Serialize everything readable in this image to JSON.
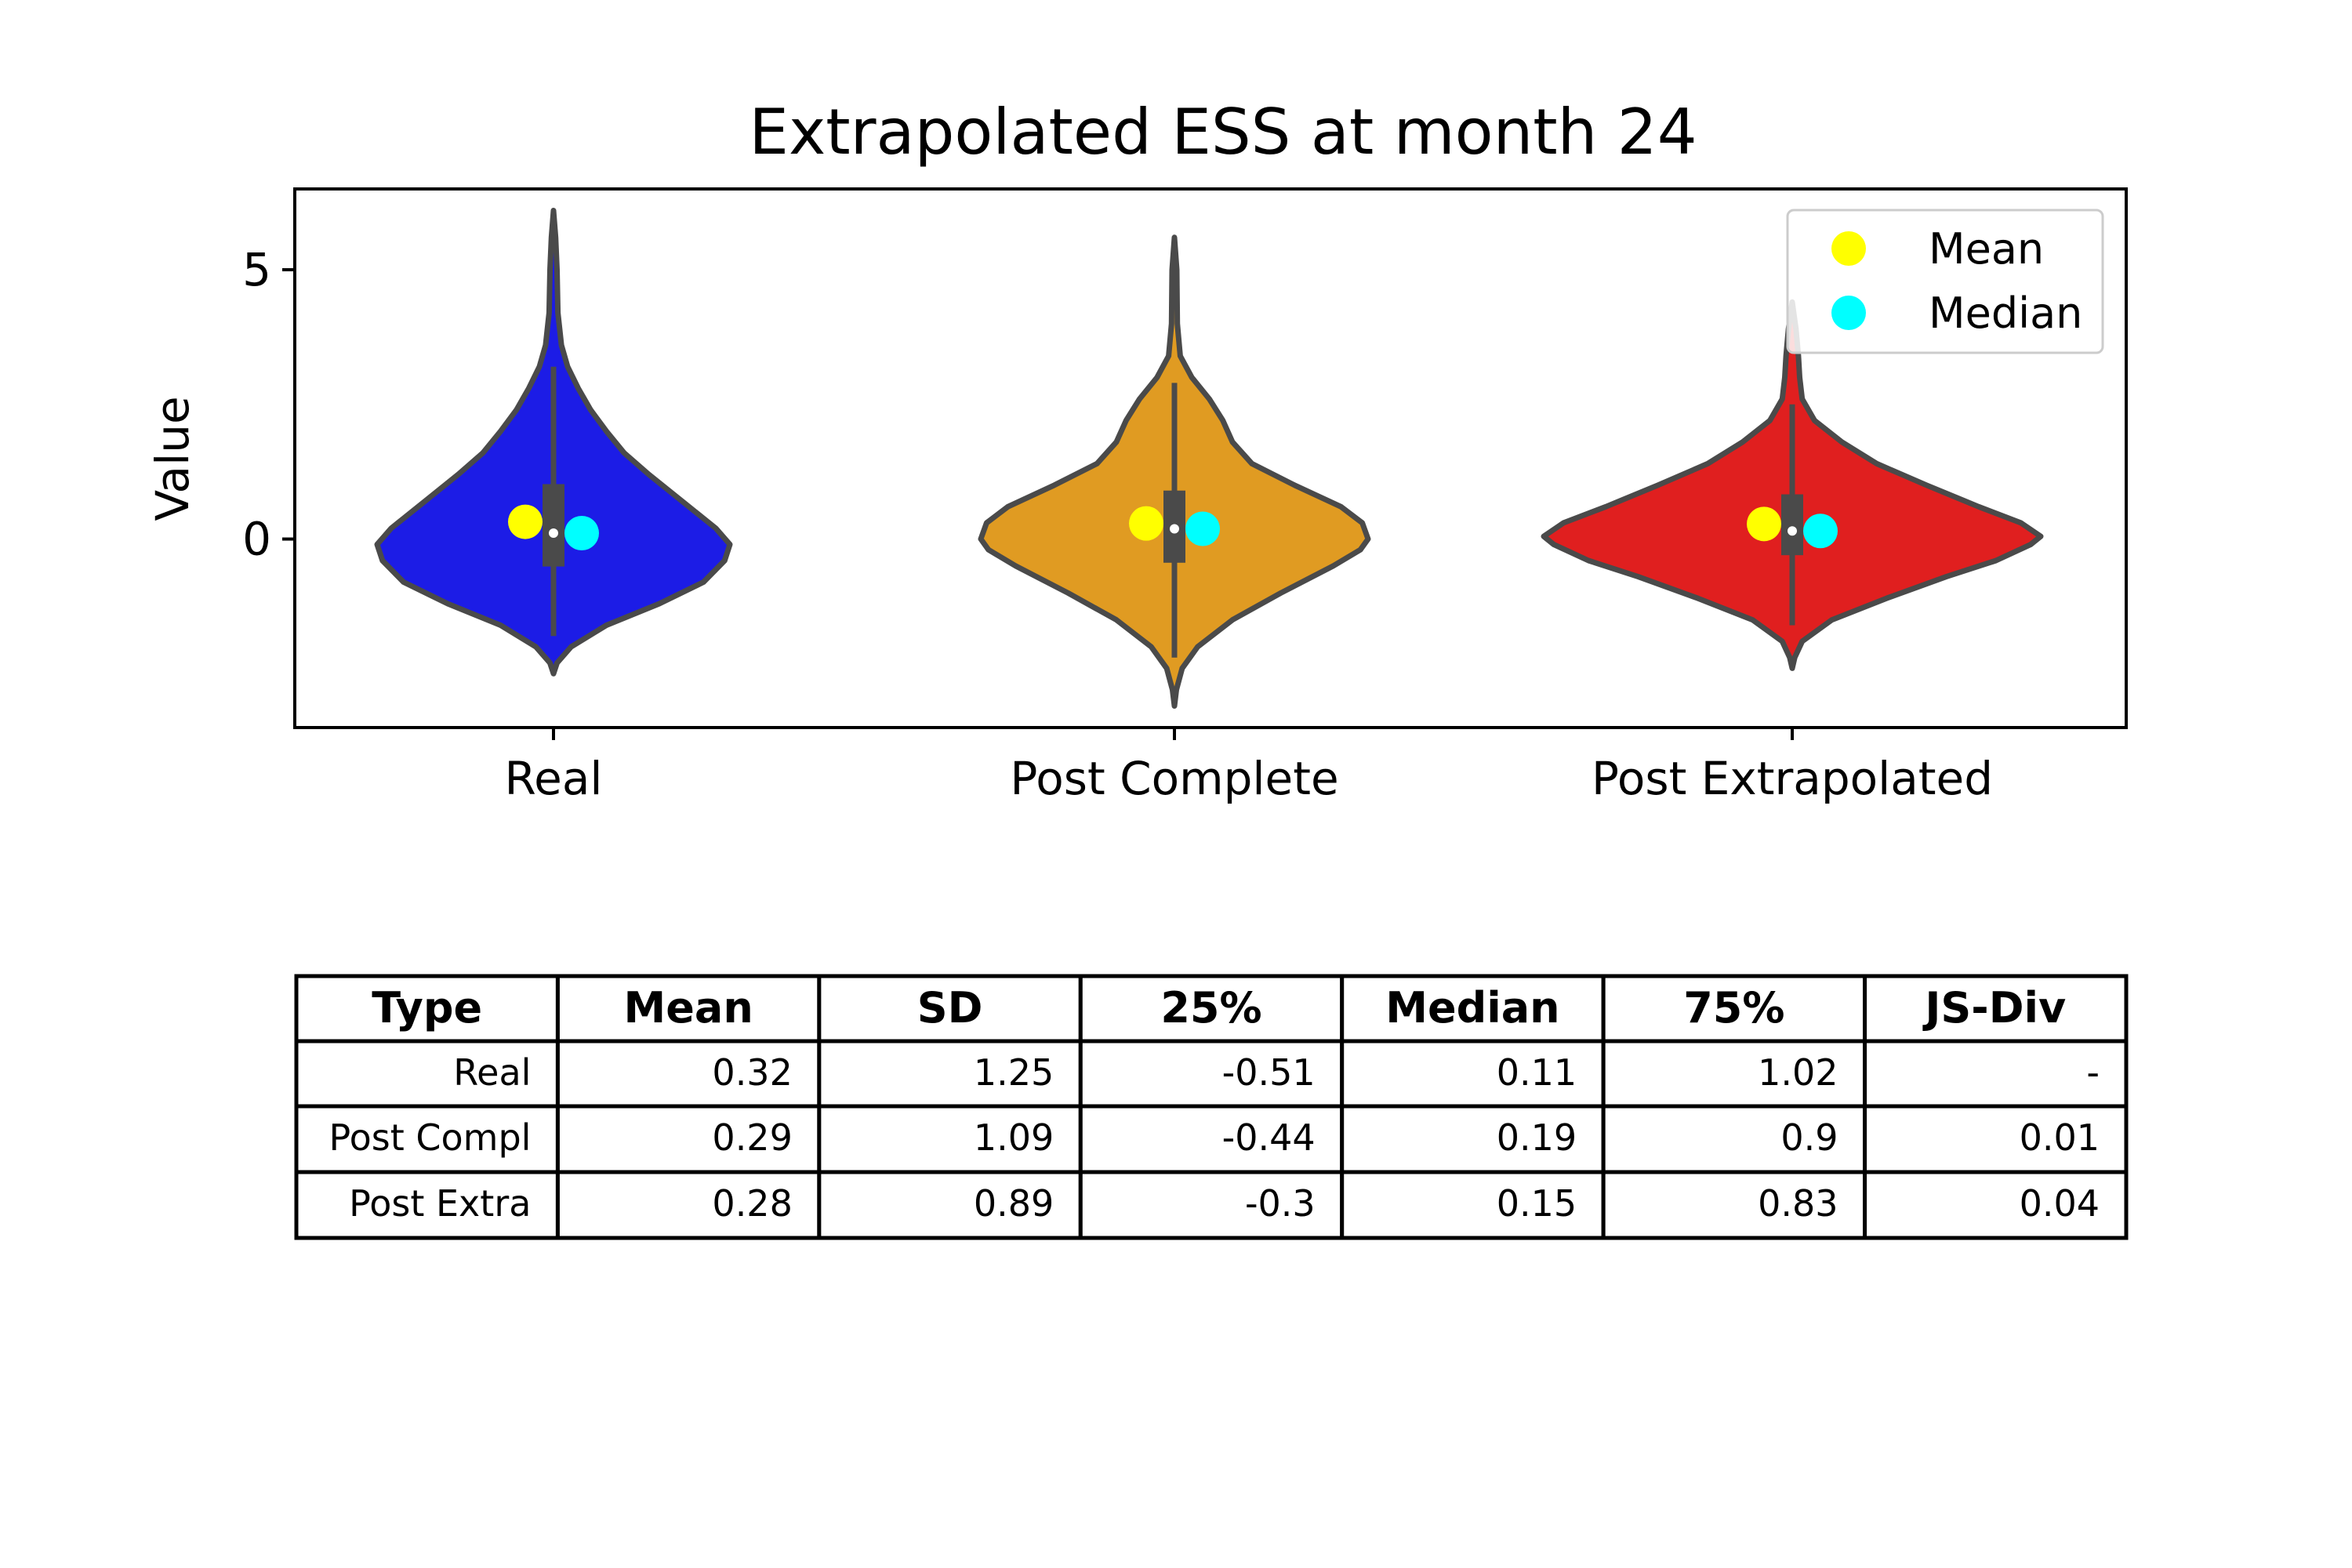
{
  "chart_data": {
    "type": "violin",
    "title": "Extrapolated ESS at month 24",
    "xlabel": "",
    "ylabel": "Value",
    "ylim": [
      -3.5,
      6.5
    ],
    "yticks": [
      0,
      5
    ],
    "yticklabels": [
      "0",
      "5"
    ],
    "categories": [
      "Real",
      "Post Complete",
      "Post Extrapolated"
    ],
    "colors": [
      "#1c1ce6",
      "#e09b22",
      "#e01f1f"
    ],
    "outline_color": "#4a4a4a",
    "series": [
      {
        "name": "Real",
        "mean": 0.32,
        "median": 0.11,
        "q1": -0.51,
        "q3": 1.02,
        "whisker": [
          -1.8,
          3.2
        ],
        "range": [
          -2.5,
          6.1
        ],
        "density": [
          [
            -2.5,
            0.0
          ],
          [
            -2.3,
            0.02
          ],
          [
            -2.0,
            0.1
          ],
          [
            -1.6,
            0.3
          ],
          [
            -1.2,
            0.6
          ],
          [
            -0.8,
            0.85
          ],
          [
            -0.4,
            0.97
          ],
          [
            -0.1,
            1.0
          ],
          [
            0.2,
            0.92
          ],
          [
            0.7,
            0.73
          ],
          [
            1.2,
            0.54
          ],
          [
            1.6,
            0.4
          ],
          [
            2.0,
            0.3
          ],
          [
            2.4,
            0.21
          ],
          [
            2.8,
            0.14
          ],
          [
            3.2,
            0.08
          ],
          [
            3.6,
            0.045
          ],
          [
            4.2,
            0.025
          ],
          [
            5.0,
            0.02
          ],
          [
            5.6,
            0.012
          ],
          [
            6.1,
            0.0
          ]
        ]
      },
      {
        "name": "Post Complete",
        "mean": 0.29,
        "median": 0.19,
        "q1": -0.44,
        "q3": 0.9,
        "whisker": [
          -2.2,
          2.9
        ],
        "range": [
          -3.1,
          5.6
        ],
        "density": [
          [
            -3.1,
            0.0
          ],
          [
            -2.8,
            0.01
          ],
          [
            -2.4,
            0.04
          ],
          [
            -2.0,
            0.12
          ],
          [
            -1.5,
            0.3
          ],
          [
            -1.0,
            0.55
          ],
          [
            -0.5,
            0.82
          ],
          [
            -0.2,
            0.96
          ],
          [
            0.0,
            1.0
          ],
          [
            0.3,
            0.97
          ],
          [
            0.6,
            0.86
          ],
          [
            1.0,
            0.62
          ],
          [
            1.4,
            0.4
          ],
          [
            1.8,
            0.3
          ],
          [
            2.2,
            0.25
          ],
          [
            2.6,
            0.18
          ],
          [
            3.0,
            0.09
          ],
          [
            3.4,
            0.03
          ],
          [
            4.0,
            0.015
          ],
          [
            5.0,
            0.012
          ],
          [
            5.6,
            0.0
          ]
        ]
      },
      {
        "name": "Post Extrapolated",
        "mean": 0.28,
        "median": 0.15,
        "q1": -0.3,
        "q3": 0.83,
        "whisker": [
          -1.6,
          2.5
        ],
        "range": [
          -2.4,
          4.4
        ],
        "density": [
          [
            -2.4,
            0.0
          ],
          [
            -2.2,
            0.01
          ],
          [
            -1.9,
            0.04
          ],
          [
            -1.5,
            0.16
          ],
          [
            -1.1,
            0.38
          ],
          [
            -0.7,
            0.62
          ],
          [
            -0.4,
            0.82
          ],
          [
            -0.1,
            0.96
          ],
          [
            0.05,
            1.0
          ],
          [
            0.3,
            0.92
          ],
          [
            0.6,
            0.75
          ],
          [
            1.0,
            0.54
          ],
          [
            1.4,
            0.34
          ],
          [
            1.8,
            0.2
          ],
          [
            2.2,
            0.09
          ],
          [
            2.6,
            0.04
          ],
          [
            3.0,
            0.03
          ],
          [
            3.4,
            0.025
          ],
          [
            3.9,
            0.015
          ],
          [
            4.4,
            0.0
          ]
        ]
      }
    ],
    "legend": {
      "position": "top-right",
      "entries": [
        {
          "label": "Mean",
          "color": "#ffff00"
        },
        {
          "label": "Median",
          "color": "#00ffff"
        }
      ]
    },
    "table": {
      "columns": [
        "Type",
        "Mean",
        "SD",
        "25%",
        "Median",
        "75%",
        "JS-Div"
      ],
      "rows": [
        [
          "Real",
          "0.32",
          "1.25",
          "-0.51",
          "0.11",
          "1.02",
          "-"
        ],
        [
          "Post Compl",
          "0.29",
          "1.09",
          "-0.44",
          "0.19",
          "0.9",
          "0.01"
        ],
        [
          "Post Extra",
          "0.28",
          "0.89",
          "-0.3",
          "0.15",
          "0.83",
          "0.04"
        ]
      ]
    }
  }
}
